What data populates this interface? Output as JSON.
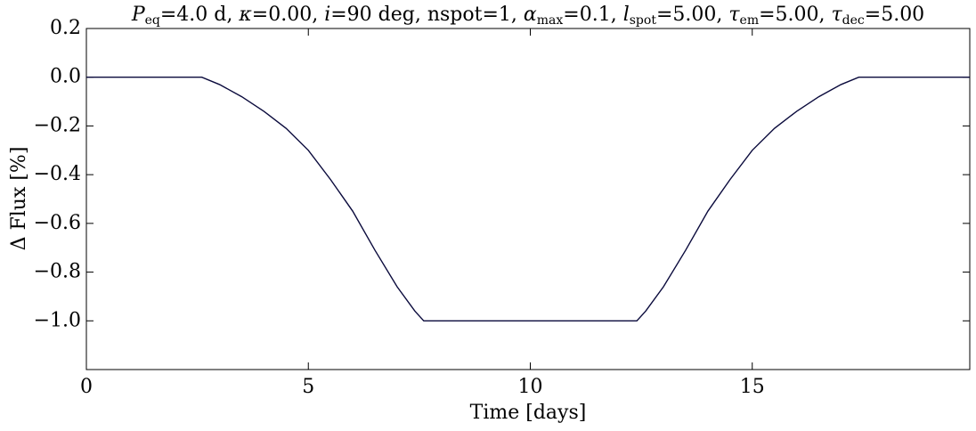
{
  "chart_data": {
    "type": "line",
    "title": [
      {
        "text": "P",
        "sub": "eq",
        "italic": true
      },
      {
        "text": "=4.0 d, "
      },
      {
        "text": "κ",
        "italic": true
      },
      {
        "text": "=0.00, "
      },
      {
        "text": "i",
        "italic": true
      },
      {
        "text": "=90 deg, nspot=1, "
      },
      {
        "text": "α",
        "sub": "max",
        "italic": true
      },
      {
        "text": "=0.1, "
      },
      {
        "text": "l",
        "sub": "spot",
        "italic": true
      },
      {
        "text": "=5.00, "
      },
      {
        "text": "τ",
        "sub": "em",
        "italic": true
      },
      {
        "text": "=5.00, "
      },
      {
        "text": "τ",
        "sub": "dec",
        "italic": true
      },
      {
        "text": "=5.00"
      }
    ],
    "x_label": "Time [days]",
    "y_label": "Δ Flux [%]",
    "x": [
      0,
      2.5,
      2.6,
      3.0,
      3.5,
      4.0,
      4.5,
      5.0,
      5.5,
      6.0,
      6.5,
      7.0,
      7.4,
      7.6,
      12.4,
      12.6,
      13.0,
      13.5,
      14.0,
      14.5,
      15.0,
      15.5,
      16.0,
      16.5,
      17.0,
      17.4,
      19.9
    ],
    "series": [
      {
        "color": "#0a0a3c",
        "values": [
          0,
          0,
          0,
          -0.03,
          -0.08,
          -0.14,
          -0.21,
          -0.3,
          -0.42,
          -0.55,
          -0.71,
          -0.86,
          -0.96,
          -1.0,
          -1.0,
          -0.96,
          -0.86,
          -0.71,
          -0.55,
          -0.42,
          -0.3,
          -0.21,
          -0.14,
          -0.08,
          -0.03,
          0,
          0
        ]
      }
    ],
    "xlim": [
      0,
      19.9
    ],
    "ylim": [
      -1.2,
      0.2
    ],
    "xticks": [
      0,
      5,
      10,
      15
    ],
    "yticks": [
      0.2,
      {
        "value": 0,
        "label": "0.0"
      },
      {
        "value": -0.2,
        "label": "−0.2"
      },
      {
        "value": -0.4,
        "label": "−0.4"
      },
      {
        "value": -0.6,
        "label": "−0.6"
      },
      {
        "value": -0.8,
        "label": "−0.8"
      },
      {
        "value": -1.0,
        "label": "−1.0"
      }
    ]
  }
}
